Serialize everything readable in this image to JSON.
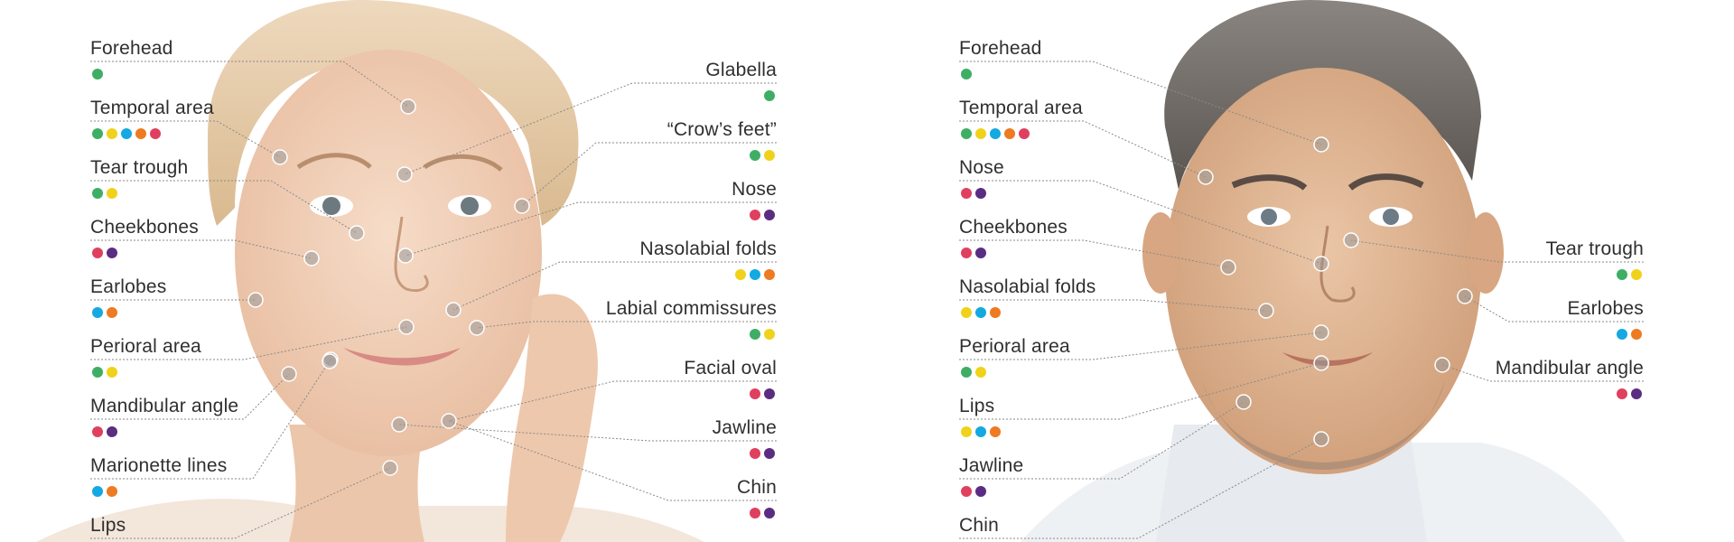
{
  "colors": {
    "green": "#3fae65",
    "yellow": "#f0d21b",
    "blue": "#14a9e0",
    "orange": "#ee7a22",
    "red": "#e0405f",
    "purple": "#5b2d82"
  },
  "woman": {
    "left": [
      {
        "label": "Forehead",
        "dots": [
          "green"
        ]
      },
      {
        "label": "Temporal area",
        "dots": [
          "green",
          "yellow",
          "blue",
          "orange",
          "red"
        ]
      },
      {
        "label": "Tear trough",
        "dots": [
          "green",
          "yellow"
        ]
      },
      {
        "label": "Cheekbones",
        "dots": [
          "red",
          "purple"
        ]
      },
      {
        "label": "Earlobes",
        "dots": [
          "blue",
          "orange"
        ]
      },
      {
        "label": "Perioral area",
        "dots": [
          "green",
          "yellow"
        ]
      },
      {
        "label": "Mandibular angle",
        "dots": [
          "red",
          "purple"
        ]
      },
      {
        "label": "Marionette lines",
        "dots": [
          "blue",
          "orange"
        ]
      },
      {
        "label": "Lips",
        "dots": []
      }
    ],
    "right": [
      {
        "label": "Glabella",
        "dots": [
          "green"
        ]
      },
      {
        "label": "“Crow’s feet”",
        "dots": [
          "green",
          "yellow"
        ]
      },
      {
        "label": "Nose",
        "dots": [
          "red",
          "purple"
        ]
      },
      {
        "label": "Nasolabial folds",
        "dots": [
          "yellow",
          "blue",
          "orange"
        ]
      },
      {
        "label": "Labial commissures",
        "dots": [
          "green",
          "yellow"
        ]
      },
      {
        "label": "Facial oval",
        "dots": [
          "red",
          "purple"
        ]
      },
      {
        "label": "Jawline",
        "dots": [
          "red",
          "purple"
        ]
      },
      {
        "label": "Chin",
        "dots": [
          "red",
          "purple"
        ]
      }
    ]
  },
  "man": {
    "left": [
      {
        "label": "Forehead",
        "dots": [
          "green"
        ]
      },
      {
        "label": "Temporal area",
        "dots": [
          "green",
          "yellow",
          "blue",
          "orange",
          "red"
        ]
      },
      {
        "label": "Nose",
        "dots": [
          "red",
          "purple"
        ]
      },
      {
        "label": "Cheekbones",
        "dots": [
          "red",
          "purple"
        ]
      },
      {
        "label": "Nasolabial folds",
        "dots": [
          "yellow",
          "blue",
          "orange"
        ]
      },
      {
        "label": "Perioral area",
        "dots": [
          "green",
          "yellow"
        ]
      },
      {
        "label": "Lips",
        "dots": [
          "yellow",
          "blue",
          "orange"
        ]
      },
      {
        "label": "Jawline",
        "dots": [
          "red",
          "purple"
        ]
      },
      {
        "label": "Chin",
        "dots": []
      }
    ],
    "right": [
      {
        "label": "Tear trough",
        "dots": [
          "green",
          "yellow"
        ]
      },
      {
        "label": "Earlobes",
        "dots": [
          "blue",
          "orange"
        ]
      },
      {
        "label": "Mandibular angle",
        "dots": [
          "red",
          "purple"
        ]
      }
    ]
  }
}
